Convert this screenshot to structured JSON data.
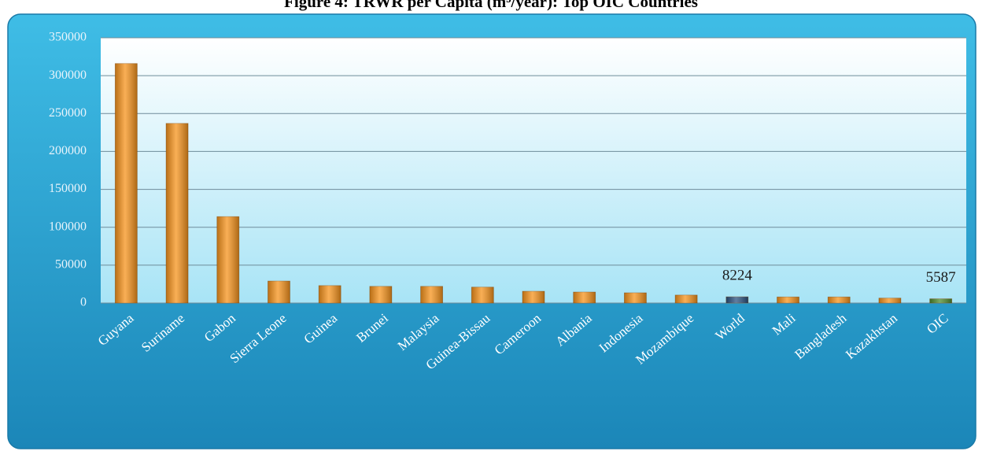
{
  "chart_data": {
    "type": "bar",
    "title": "Figure 4: TRWR per Capita (m³/year): Top OIC Countries",
    "categories": [
      "Guyana",
      "Suriname",
      "Gabon",
      "Sierra Leone",
      "Guinea",
      "Brunei",
      "Malaysia",
      "Guinea-Bissau",
      "Cameroon",
      "Albania",
      "Indonesia",
      "Mozambique",
      "World",
      "Mali",
      "Bangladesh",
      "Kazakhstan",
      "OIC"
    ],
    "values": [
      316000,
      237000,
      114000,
      29000,
      23000,
      22000,
      22000,
      21000,
      15500,
      14500,
      13500,
      10500,
      8224,
      8000,
      8000,
      6500,
      5587
    ],
    "value_labels": [
      null,
      null,
      null,
      null,
      null,
      null,
      null,
      null,
      null,
      null,
      null,
      null,
      "8224",
      null,
      null,
      null,
      "5587"
    ],
    "colors": [
      "#f7941d",
      "#f7941d",
      "#f7941d",
      "#f7941d",
      "#f7941d",
      "#f7941d",
      "#f7941d",
      "#f7941d",
      "#f7941d",
      "#f7941d",
      "#f7941d",
      "#f7941d",
      "#2b5281",
      "#f7941d",
      "#f7941d",
      "#f7941d",
      "#4f8d2f"
    ],
    "ylim": [
      0,
      350000
    ],
    "yticks": [
      0,
      50000,
      100000,
      150000,
      200000,
      250000,
      300000,
      350000
    ],
    "grid": true
  }
}
